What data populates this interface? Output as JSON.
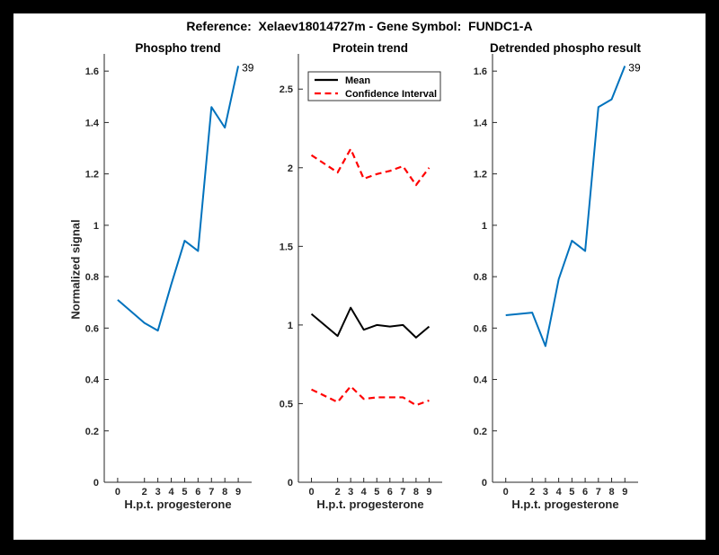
{
  "figure": {
    "title": "Reference:  Xelaev18014727m - Gene Symbol:  FUNDC1-A",
    "background": "#000000",
    "canvas": "#FFFFFF"
  },
  "colors": {
    "phospho_line": "#0072BD",
    "mean_line": "#000000",
    "confidence_line": "#FF0000",
    "axis": "#262626"
  },
  "chart_data": [
    {
      "type": "line",
      "title": "Phospho trend",
      "xlabel": "H.p.t. progesterone",
      "ylabel": "Normalized signal",
      "xlim": [
        -1,
        10
      ],
      "ylim": [
        0,
        1.667
      ],
      "grid": false,
      "xticks": {
        "values": [
          0,
          2,
          3,
          4,
          5,
          6,
          7,
          8,
          9
        ],
        "labels": [
          "0",
          "2",
          "3",
          "4",
          "5",
          "6",
          "7",
          "8",
          "9"
        ]
      },
      "yticks": {
        "values": [
          0,
          0.2,
          0.4,
          0.6,
          0.8,
          1,
          1.2,
          1.4,
          1.6
        ],
        "labels": [
          "0",
          "0.2",
          "0.4",
          "0.6",
          "0.8",
          "1",
          "1.2",
          "1.4",
          "1.6"
        ]
      },
      "x": [
        0,
        2,
        3,
        4,
        5,
        6,
        7,
        8,
        9
      ],
      "series": [
        {
          "name": "phospho-signal",
          "color": "#0072BD",
          "dash": false,
          "values": [
            0.71,
            0.62,
            0.59,
            0.77,
            0.94,
            0.9,
            1.46,
            1.38,
            1.62
          ]
        }
      ],
      "annotation": {
        "text": "39"
      }
    },
    {
      "type": "line",
      "title": "Protein trend",
      "xlabel": "H.p.t. progesterone",
      "ylabel": "",
      "xlim": [
        -1,
        10
      ],
      "ylim": [
        0,
        2.724
      ],
      "grid": false,
      "legend_position": "top-left",
      "xticks": {
        "values": [
          0,
          2,
          3,
          4,
          5,
          6,
          7,
          8,
          9
        ],
        "labels": [
          "0",
          "2",
          "3",
          "4",
          "5",
          "6",
          "7",
          "8",
          "9"
        ]
      },
      "yticks": {
        "values": [
          0,
          0.5,
          1,
          1.5,
          2,
          2.5
        ],
        "labels": [
          "0",
          "0.5",
          "1",
          "1.5",
          "2",
          "2.5"
        ]
      },
      "x": [
        0,
        2,
        3,
        4,
        5,
        6,
        7,
        8,
        9
      ],
      "series": [
        {
          "name": "mean",
          "color": "#000000",
          "dash": false,
          "values": [
            1.07,
            0.93,
            1.11,
            0.97,
            1.0,
            0.99,
            1.0,
            0.92,
            0.99
          ]
        },
        {
          "name": "ci-upper",
          "color": "#FF0000",
          "dash": true,
          "values": [
            2.08,
            1.97,
            2.12,
            1.93,
            1.96,
            1.98,
            2.01,
            1.89,
            2.0
          ]
        },
        {
          "name": "ci-lower",
          "color": "#FF0000",
          "dash": true,
          "values": [
            0.59,
            0.51,
            0.61,
            0.53,
            0.54,
            0.54,
            0.54,
            0.49,
            0.52
          ]
        }
      ],
      "legend": [
        {
          "label": "Mean",
          "color": "#000000",
          "dash": false
        },
        {
          "label": "Confidence Interval",
          "color": "#FF0000",
          "dash": true
        }
      ]
    },
    {
      "type": "line",
      "title": "Detrended phospho result",
      "xlabel": "H.p.t. progesterone",
      "ylabel": "",
      "xlim": [
        -1,
        10
      ],
      "ylim": [
        0,
        1.667
      ],
      "grid": false,
      "xticks": {
        "values": [
          0,
          2,
          3,
          4,
          5,
          6,
          7,
          8,
          9
        ],
        "labels": [
          "0",
          "2",
          "3",
          "4",
          "5",
          "6",
          "7",
          "8",
          "9"
        ]
      },
      "yticks": {
        "values": [
          0,
          0.2,
          0.4,
          0.6,
          0.8,
          1,
          1.2,
          1.4,
          1.6
        ],
        "labels": [
          "0",
          "0.2",
          "0.4",
          "0.6",
          "0.8",
          "1",
          "1.2",
          "1.4",
          "1.6"
        ]
      },
      "x": [
        0,
        2,
        3,
        4,
        5,
        6,
        7,
        8,
        9
      ],
      "series": [
        {
          "name": "detrended-phospho",
          "color": "#0072BD",
          "dash": false,
          "values": [
            0.65,
            0.66,
            0.53,
            0.79,
            0.94,
            0.9,
            1.46,
            1.49,
            1.62
          ]
        }
      ],
      "annotation": {
        "text": "39"
      }
    }
  ]
}
